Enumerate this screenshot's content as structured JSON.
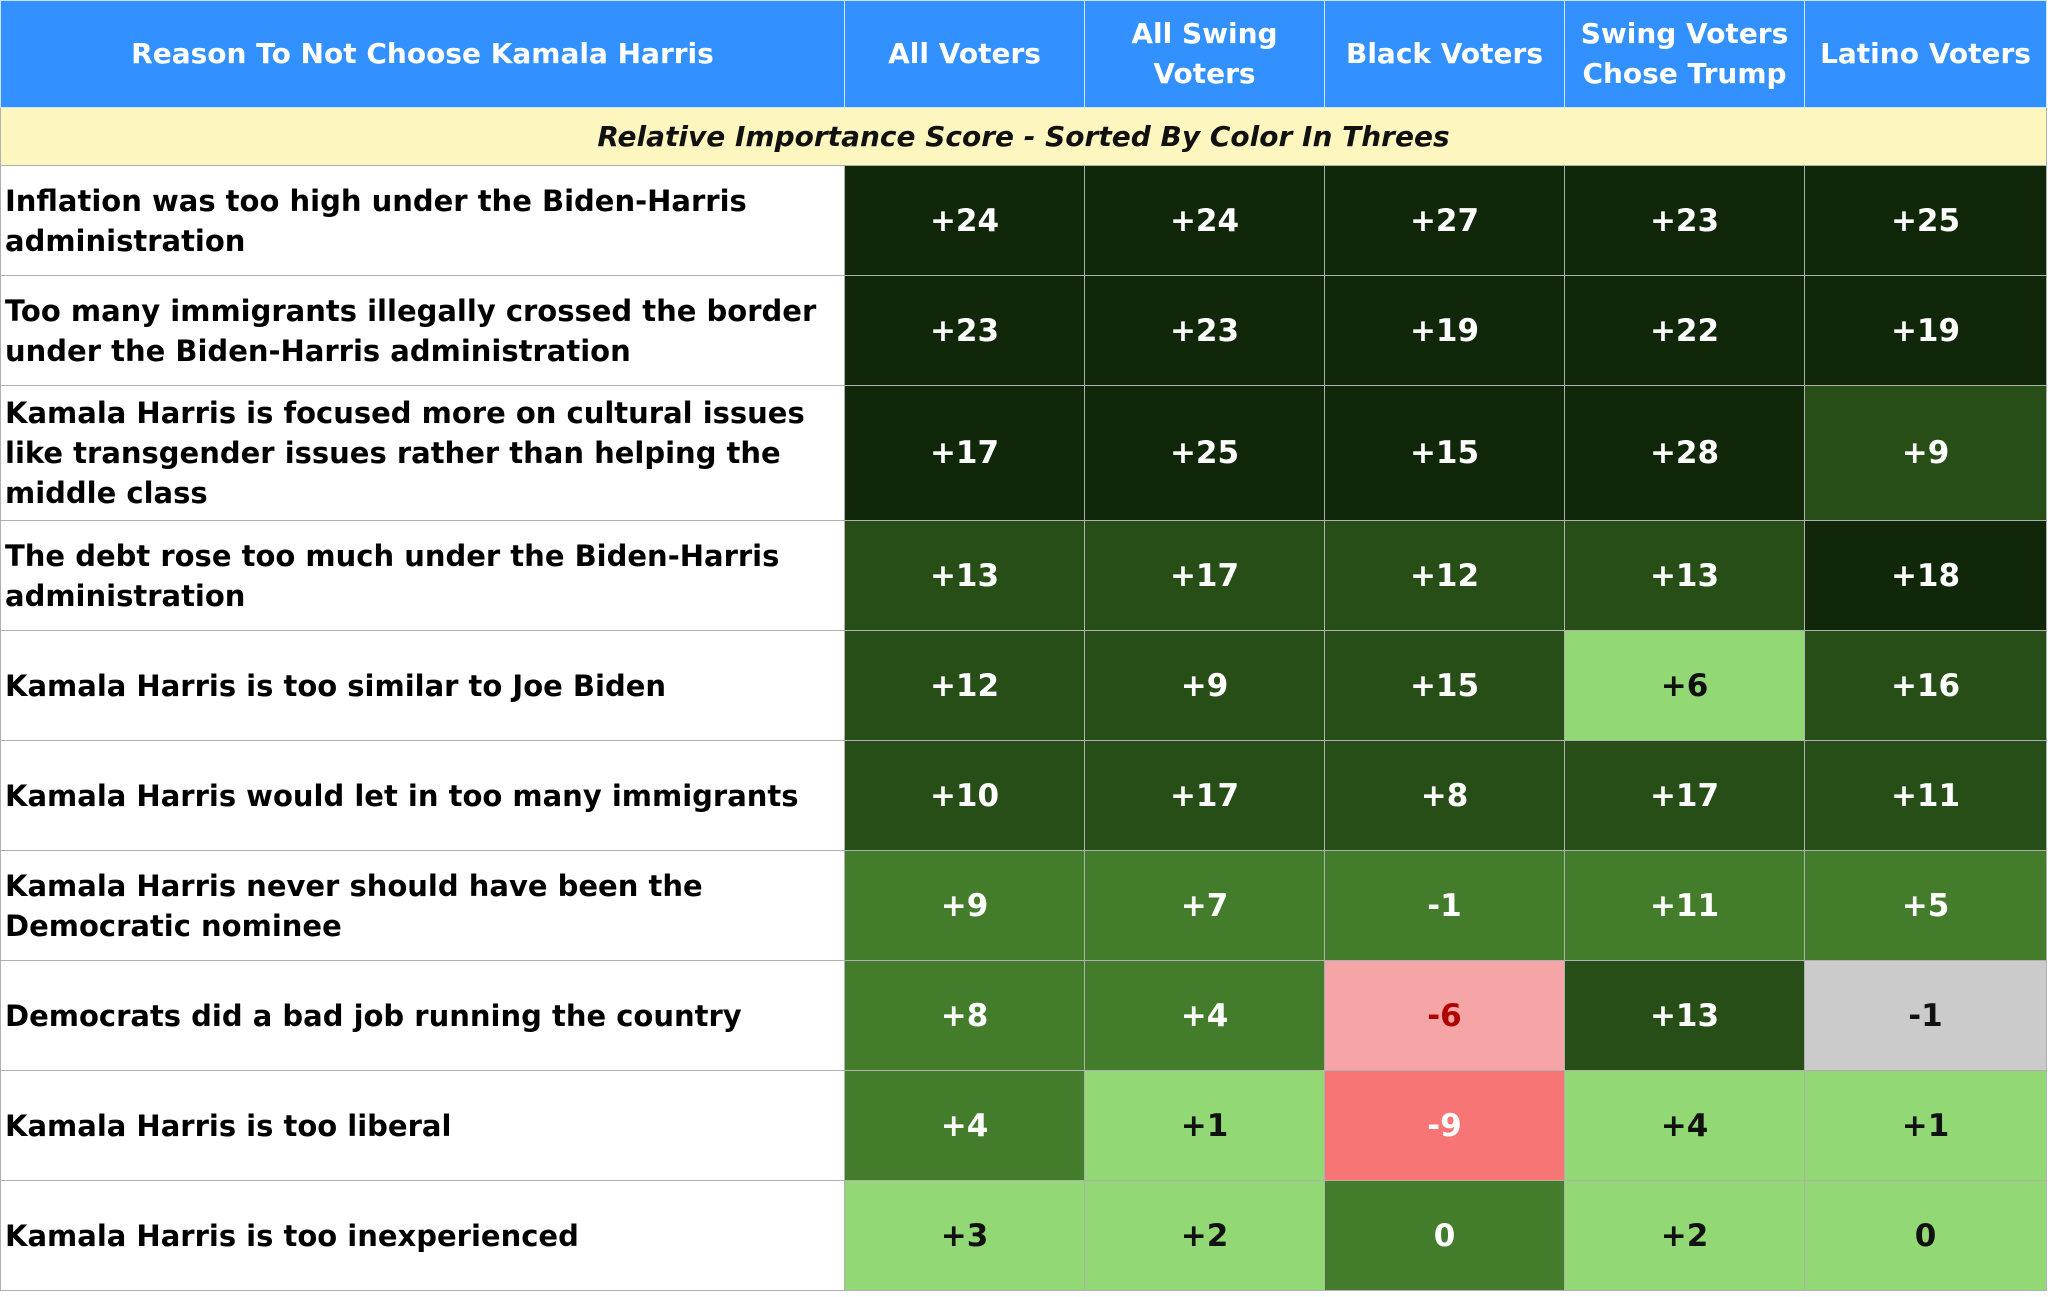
{
  "chart_data": {
    "type": "table",
    "title": "Relative Importance Score - Sorted By Color In Threes",
    "columns": [
      "Reason To Not Choose Kamala Harris",
      "All Voters",
      "All Swing Voters",
      "Black Voters",
      "Swing Voters Chose Trump",
      "Latino Voters"
    ],
    "rows": [
      {
        "reason": "Inflation was too high under the Biden-Harris administration",
        "values": [
          "+24",
          "+24",
          "+27",
          "+23",
          "+25"
        ],
        "shades": [
          "c5",
          "c5",
          "c5",
          "c5",
          "c5"
        ]
      },
      {
        "reason": "Too many immigrants illegally crossed the border under the Biden-Harris administration",
        "values": [
          "+23",
          "+23",
          "+19",
          "+22",
          "+19"
        ],
        "shades": [
          "c5",
          "c5",
          "c5",
          "c5",
          "c5"
        ]
      },
      {
        "reason": "Kamala Harris is focused more on cultural issues like transgender issues rather than helping the middle class",
        "values": [
          "+17",
          "+25",
          "+15",
          "+28",
          "+9"
        ],
        "shades": [
          "c5",
          "c5",
          "c5",
          "c5",
          "c4"
        ]
      },
      {
        "reason": "The debt rose too much under the Biden-Harris administration",
        "values": [
          "+13",
          "+17",
          "+12",
          "+13",
          "+18"
        ],
        "shades": [
          "c4",
          "c4",
          "c4",
          "c4",
          "c5"
        ]
      },
      {
        "reason": "Kamala Harris is too similar to Joe Biden",
        "values": [
          "+12",
          "+9",
          "+15",
          "+6",
          "+16"
        ],
        "shades": [
          "c4",
          "c4",
          "c4",
          "c2",
          "c4"
        ]
      },
      {
        "reason": "Kamala Harris would let in too many immigrants",
        "values": [
          "+10",
          "+17",
          "+8",
          "+17",
          "+11"
        ],
        "shades": [
          "c4",
          "c4",
          "c4",
          "c4",
          "c4"
        ]
      },
      {
        "reason": "Kamala Harris never should have been the Democratic nominee",
        "values": [
          "+9",
          "+7",
          "-1",
          "+11",
          "+5"
        ],
        "shades": [
          "c3",
          "c3",
          "c3",
          "c3",
          "c3"
        ]
      },
      {
        "reason": "Democrats did a bad job running the country",
        "values": [
          "+8",
          "+4",
          "-6",
          "+13",
          "-1"
        ],
        "shades": [
          "c3",
          "c3",
          "r1",
          "c4",
          "cn"
        ]
      },
      {
        "reason": "Kamala Harris is too liberal",
        "values": [
          "+4",
          "+1",
          "-9",
          "+4",
          "+1"
        ],
        "shades": [
          "c3",
          "c2",
          "r2",
          "c2",
          "c2"
        ]
      },
      {
        "reason": "Kamala Harris is too inexperienced",
        "values": [
          "+3",
          "+2",
          "0",
          "+2",
          "0"
        ],
        "shades": [
          "c2",
          "c2",
          "c3",
          "c2",
          "c2"
        ]
      }
    ]
  }
}
